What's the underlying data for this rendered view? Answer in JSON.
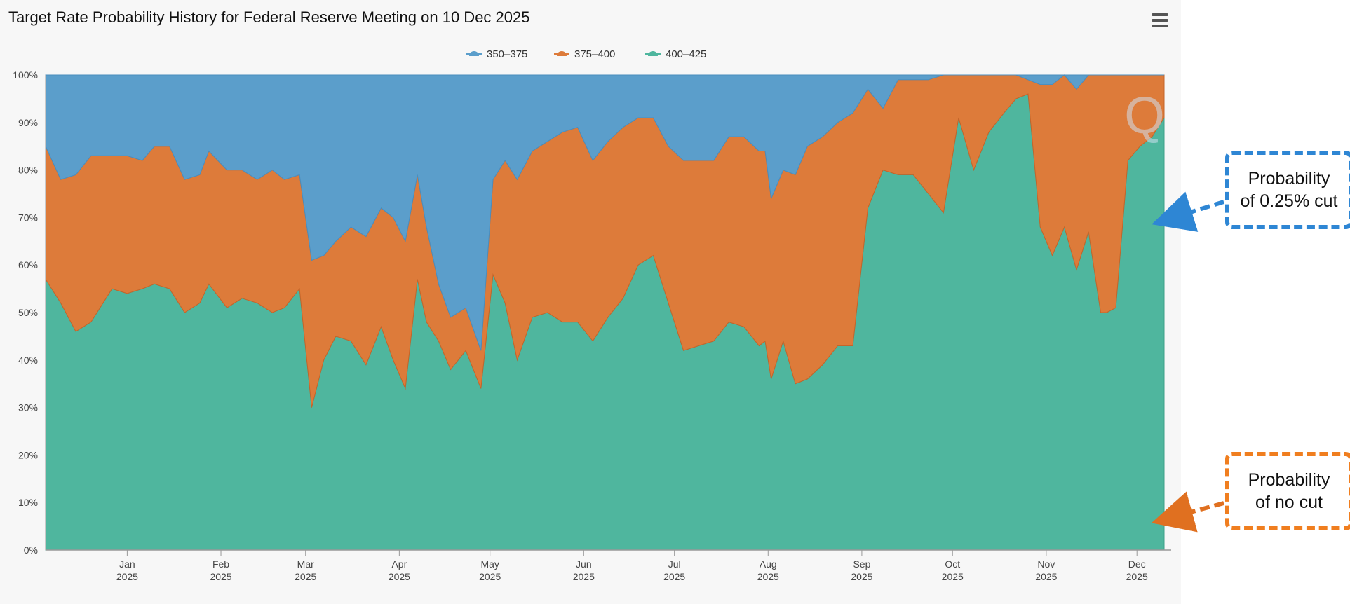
{
  "title": "Target Rate Probability History for Federal Reserve Meeting on 10 Dec 2025",
  "menu": {
    "icon": "hamburger-menu-icon"
  },
  "watermark": "Q",
  "colors": {
    "s350": "#5b9ecb",
    "s375": "#dd7b3a",
    "s400": "#4fb69e",
    "callout_cut_border": "#2e86d4",
    "callout_nocut_border": "#f07e1f"
  },
  "callouts": {
    "cut": {
      "line1": "Probability",
      "line2": "of 0.25% cut"
    },
    "nocut": {
      "line1": "Probability",
      "line2": "of no cut"
    }
  },
  "chart_data": {
    "type": "area",
    "stacked": true,
    "ylim": [
      0,
      100
    ],
    "y_ticks": [
      "0%",
      "10%",
      "20%",
      "30%",
      "40%",
      "50%",
      "60%",
      "70%",
      "80%",
      "90%",
      "100%"
    ],
    "x_ticks": [
      {
        "month": "Jan",
        "year": "2025"
      },
      {
        "month": "Feb",
        "year": "2025"
      },
      {
        "month": "Mar",
        "year": "2025"
      },
      {
        "month": "Apr",
        "year": "2025"
      },
      {
        "month": "May",
        "year": "2025"
      },
      {
        "month": "Jun",
        "year": "2025"
      },
      {
        "month": "Jul",
        "year": "2025"
      },
      {
        "month": "Aug",
        "year": "2025"
      },
      {
        "month": "Sep",
        "year": "2025"
      },
      {
        "month": "Oct",
        "year": "2025"
      },
      {
        "month": "Nov",
        "year": "2025"
      },
      {
        "month": "Dec",
        "year": "2025"
      }
    ],
    "xlim": [
      "2024-12-05",
      "2025-12-10"
    ],
    "grid": true,
    "legend_position": "top-center",
    "x": [
      "2024-12-05",
      "2024-12-10",
      "2024-12-15",
      "2024-12-20",
      "2024-12-27",
      "2025-01-01",
      "2025-01-06",
      "2025-01-10",
      "2025-01-15",
      "2025-01-20",
      "2025-01-25",
      "2025-01-28",
      "2025-02-03",
      "2025-02-08",
      "2025-02-13",
      "2025-02-18",
      "2025-02-22",
      "2025-02-27",
      "2025-03-03",
      "2025-03-07",
      "2025-03-11",
      "2025-03-16",
      "2025-03-21",
      "2025-03-26",
      "2025-03-30",
      "2025-04-03",
      "2025-04-07",
      "2025-04-10",
      "2025-04-14",
      "2025-04-18",
      "2025-04-23",
      "2025-04-28",
      "2025-05-02",
      "2025-05-06",
      "2025-05-10",
      "2025-05-15",
      "2025-05-20",
      "2025-05-25",
      "2025-05-30",
      "2025-06-04",
      "2025-06-09",
      "2025-06-14",
      "2025-06-19",
      "2025-06-24",
      "2025-06-29",
      "2025-07-04",
      "2025-07-09",
      "2025-07-14",
      "2025-07-19",
      "2025-07-24",
      "2025-07-29",
      "2025-07-31",
      "2025-08-02",
      "2025-08-06",
      "2025-08-10",
      "2025-08-14",
      "2025-08-19",
      "2025-08-24",
      "2025-08-29",
      "2025-09-03",
      "2025-09-08",
      "2025-09-13",
      "2025-09-18",
      "2025-09-23",
      "2025-09-28",
      "2025-10-03",
      "2025-10-08",
      "2025-10-13",
      "2025-10-18",
      "2025-10-22",
      "2025-10-26",
      "2025-10-30",
      "2025-11-03",
      "2025-11-07",
      "2025-11-11",
      "2025-11-15",
      "2025-11-19",
      "2025-11-21",
      "2025-11-24",
      "2025-11-28",
      "2025-12-02",
      "2025-12-06",
      "2025-12-10"
    ],
    "series": [
      {
        "name": "350–375",
        "values": [
          0,
          0,
          0,
          0,
          0,
          0,
          0,
          0,
          0,
          0,
          0,
          0,
          0,
          0,
          0,
          0,
          0,
          0,
          0,
          0,
          0,
          0,
          0,
          0,
          0,
          0,
          0,
          0,
          0,
          0,
          0,
          0,
          0,
          0,
          0,
          0,
          0,
          0,
          0,
          0,
          0,
          0,
          0,
          0,
          0,
          0,
          0,
          0,
          0,
          0,
          0,
          0,
          0,
          0,
          0,
          0,
          0,
          0,
          0,
          0,
          0,
          0,
          0,
          0,
          0,
          0,
          0,
          0,
          0,
          0,
          0,
          0,
          0,
          0,
          0,
          0,
          0,
          0,
          0,
          0,
          0,
          0,
          0
        ]
      },
      {
        "name": "375–400",
        "values": [
          28,
          26,
          33,
          35,
          28,
          29,
          27,
          29,
          30,
          28,
          27,
          28,
          29,
          27,
          26,
          30,
          27,
          24,
          31,
          22,
          20,
          24,
          27,
          25,
          30,
          31,
          22,
          20,
          12,
          11,
          9,
          8,
          20,
          30,
          38,
          35,
          36,
          40,
          41,
          38,
          37,
          36,
          31,
          29,
          33,
          40,
          39,
          38,
          39,
          40,
          41,
          40,
          38,
          36,
          44,
          49,
          48,
          47,
          49,
          25,
          13,
          20,
          20,
          24,
          29,
          9,
          20,
          12,
          8,
          5,
          3,
          30,
          36,
          32,
          38,
          33,
          50,
          50,
          49,
          18,
          15,
          13,
          9
        ]
      },
      {
        "name": "400–425",
        "values": [
          57,
          52,
          46,
          48,
          55,
          54,
          55,
          56,
          55,
          50,
          52,
          56,
          51,
          53,
          52,
          50,
          51,
          55,
          30,
          40,
          45,
          44,
          39,
          47,
          40,
          34,
          57,
          48,
          44,
          38,
          42,
          34,
          58,
          52,
          40,
          49,
          50,
          48,
          48,
          44,
          49,
          53,
          60,
          62,
          52,
          42,
          43,
          44,
          48,
          47,
          43,
          44,
          36,
          44,
          35,
          36,
          39,
          43,
          43,
          72,
          80,
          79,
          79,
          75,
          71,
          91,
          80,
          88,
          92,
          95,
          96,
          68,
          62,
          68,
          59,
          67,
          50,
          50,
          51,
          82,
          85,
          87,
          91
        ]
      }
    ]
  },
  "chart_notes": "Stacked from bottom: 400–425 (bottom), 375–400 (middle), 350–375 (top, fills to the total)."
}
